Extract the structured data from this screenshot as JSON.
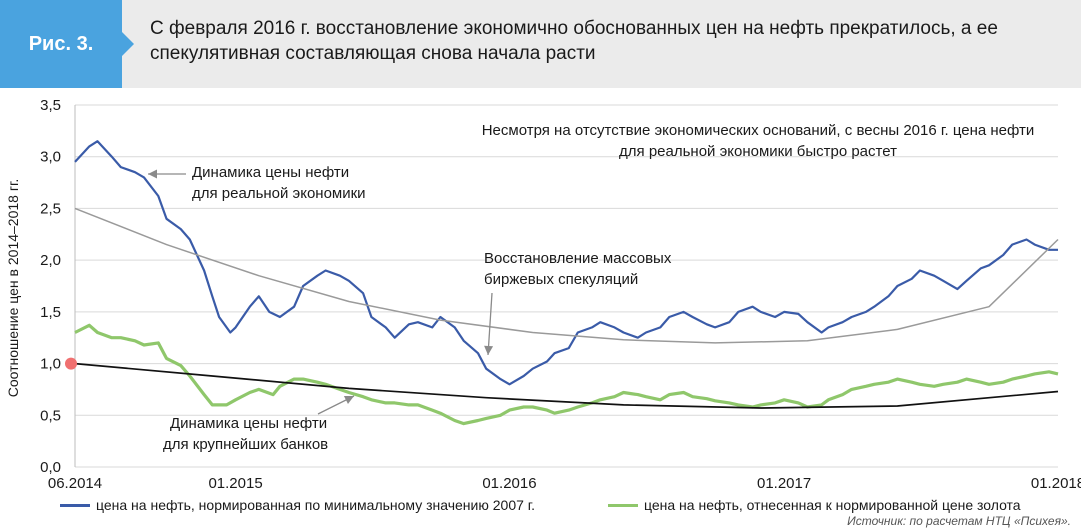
{
  "header": {
    "figure_label": "Рис. 3.",
    "title_line1": "С февраля 2016 г. восстановление экономично обоснованных цен на нефть прекратилось, а ее",
    "title_line2": "спекулятивная составляющая снова начала расти"
  },
  "colors": {
    "blue": "#3a5ba8",
    "green": "#8fc76b",
    "grey": "#9a9a9a",
    "black": "#111111",
    "marker": "#f07070",
    "accent": "#4aa3df"
  },
  "chart_data": {
    "type": "line",
    "title": "С февраля 2016 г. восстановление экономично обоснованных цен на нефть прекратилось, а ее спекулятивная составляющая снова начала расти",
    "ylabel": "Соотношение цен в 2014–2018 гг.",
    "ylim": [
      0,
      3.5
    ],
    "yticks": [
      "0,0",
      "0,5",
      "1,0",
      "1,5",
      "2,0",
      "2,5",
      "3,0",
      "3,5"
    ],
    "xlim": [
      "2014-06",
      "2018-01"
    ],
    "xticks": [
      {
        "x": "2014-06",
        "label": "06.2014"
      },
      {
        "x": "2015-01",
        "label": "01.2015"
      },
      {
        "x": "2016-01",
        "label": "01.2016"
      },
      {
        "x": "2017-01",
        "label": "01.2017"
      },
      {
        "x": "2018-01",
        "label": "01.2018"
      }
    ],
    "grid": "horizontal",
    "legend_position": "bottom",
    "series": [
      {
        "name": "цена на нефть, нормированная по минимальному значению 2007 г.",
        "style": "solid-thick",
        "points": [
          [
            "2014-06",
            2.95
          ],
          [
            "2014-06-20",
            3.1
          ],
          [
            "2014-07",
            3.15
          ],
          [
            "2014-07-20",
            3.0
          ],
          [
            "2014-08",
            2.9
          ],
          [
            "2014-08-20",
            2.85
          ],
          [
            "2014-09",
            2.8
          ],
          [
            "2014-09-20",
            2.62
          ],
          [
            "2014-10",
            2.4
          ],
          [
            "2014-10-20",
            2.3
          ],
          [
            "2014-11",
            2.2
          ],
          [
            "2014-11-20",
            1.9
          ],
          [
            "2014-12",
            1.65
          ],
          [
            "2014-12-10",
            1.45
          ],
          [
            "2014-12-25",
            1.3
          ],
          [
            "2015-01",
            1.35
          ],
          [
            "2015-01-20",
            1.55
          ],
          [
            "2015-02",
            1.65
          ],
          [
            "2015-02-15",
            1.5
          ],
          [
            "2015-03",
            1.45
          ],
          [
            "2015-03-20",
            1.55
          ],
          [
            "2015-04",
            1.75
          ],
          [
            "2015-04-20",
            1.85
          ],
          [
            "2015-05",
            1.9
          ],
          [
            "2015-05-20",
            1.85
          ],
          [
            "2015-06",
            1.8
          ],
          [
            "2015-06-20",
            1.68
          ],
          [
            "2015-07",
            1.45
          ],
          [
            "2015-07-20",
            1.35
          ],
          [
            "2015-08",
            1.25
          ],
          [
            "2015-08-20",
            1.38
          ],
          [
            "2015-09",
            1.4
          ],
          [
            "2015-09-20",
            1.35
          ],
          [
            "2015-10",
            1.45
          ],
          [
            "2015-10-20",
            1.35
          ],
          [
            "2015-11",
            1.22
          ],
          [
            "2015-11-20",
            1.1
          ],
          [
            "2015-12",
            0.95
          ],
          [
            "2015-12-20",
            0.85
          ],
          [
            "2016-01",
            0.8
          ],
          [
            "2016-01-20",
            0.88
          ],
          [
            "2016-02",
            0.95
          ],
          [
            "2016-02-20",
            1.02
          ],
          [
            "2016-03",
            1.1
          ],
          [
            "2016-03-20",
            1.15
          ],
          [
            "2016-04",
            1.3
          ],
          [
            "2016-04-20",
            1.35
          ],
          [
            "2016-05",
            1.4
          ],
          [
            "2016-05-20",
            1.35
          ],
          [
            "2016-06",
            1.3
          ],
          [
            "2016-06-20",
            1.25
          ],
          [
            "2016-07",
            1.3
          ],
          [
            "2016-07-20",
            1.35
          ],
          [
            "2016-08",
            1.45
          ],
          [
            "2016-08-20",
            1.5
          ],
          [
            "2016-09",
            1.45
          ],
          [
            "2016-09-20",
            1.38
          ],
          [
            "2016-10",
            1.35
          ],
          [
            "2016-10-20",
            1.4
          ],
          [
            "2016-11",
            1.5
          ],
          [
            "2016-11-20",
            1.55
          ],
          [
            "2016-12",
            1.5
          ],
          [
            "2016-12-20",
            1.45
          ],
          [
            "2017-01",
            1.5
          ],
          [
            "2017-01-20",
            1.48
          ],
          [
            "2017-02",
            1.4
          ],
          [
            "2017-02-20",
            1.3
          ],
          [
            "2017-03",
            1.35
          ],
          [
            "2017-03-20",
            1.4
          ],
          [
            "2017-04",
            1.45
          ],
          [
            "2017-04-20",
            1.5
          ],
          [
            "2017-05",
            1.55
          ],
          [
            "2017-05-20",
            1.65
          ],
          [
            "2017-06",
            1.75
          ],
          [
            "2017-06-20",
            1.82
          ],
          [
            "2017-07",
            1.9
          ],
          [
            "2017-07-20",
            1.85
          ],
          [
            "2017-08",
            1.8
          ],
          [
            "2017-08-20",
            1.72
          ],
          [
            "2017-09",
            1.8
          ],
          [
            "2017-09-20",
            1.92
          ],
          [
            "2017-10",
            1.95
          ],
          [
            "2017-10-20",
            2.05
          ],
          [
            "2017-11",
            2.15
          ],
          [
            "2017-11-20",
            2.2
          ],
          [
            "2017-12",
            2.15
          ],
          [
            "2017-12-20",
            2.1
          ],
          [
            "2018-01",
            2.1
          ]
        ]
      },
      {
        "name": "цена на нефть, отнесенная к нормированной цене золота",
        "style": "solid-thick",
        "points": [
          [
            "2014-06",
            1.3
          ],
          [
            "2014-06-20",
            1.37
          ],
          [
            "2014-07",
            1.3
          ],
          [
            "2014-07-20",
            1.25
          ],
          [
            "2014-08",
            1.25
          ],
          [
            "2014-08-20",
            1.22
          ],
          [
            "2014-09",
            1.18
          ],
          [
            "2014-09-20",
            1.2
          ],
          [
            "2014-10",
            1.05
          ],
          [
            "2014-10-20",
            0.98
          ],
          [
            "2014-11",
            0.88
          ],
          [
            "2014-11-20",
            0.7
          ],
          [
            "2014-12",
            0.6
          ],
          [
            "2014-12-20",
            0.6
          ],
          [
            "2015-01",
            0.65
          ],
          [
            "2015-01-20",
            0.72
          ],
          [
            "2015-02",
            0.75
          ],
          [
            "2015-02-20",
            0.7
          ],
          [
            "2015-03",
            0.78
          ],
          [
            "2015-03-20",
            0.85
          ],
          [
            "2015-04",
            0.85
          ],
          [
            "2015-04-20",
            0.82
          ],
          [
            "2015-05",
            0.8
          ],
          [
            "2015-05-20",
            0.75
          ],
          [
            "2015-06",
            0.72
          ],
          [
            "2015-06-20",
            0.68
          ],
          [
            "2015-07",
            0.65
          ],
          [
            "2015-07-20",
            0.62
          ],
          [
            "2015-08",
            0.62
          ],
          [
            "2015-08-20",
            0.6
          ],
          [
            "2015-09",
            0.6
          ],
          [
            "2015-09-20",
            0.55
          ],
          [
            "2015-10",
            0.52
          ],
          [
            "2015-10-20",
            0.45
          ],
          [
            "2015-11",
            0.42
          ],
          [
            "2015-11-20",
            0.45
          ],
          [
            "2015-12",
            0.47
          ],
          [
            "2015-12-20",
            0.5
          ],
          [
            "2016-01",
            0.55
          ],
          [
            "2016-01-20",
            0.58
          ],
          [
            "2016-02",
            0.58
          ],
          [
            "2016-02-20",
            0.55
          ],
          [
            "2016-03",
            0.52
          ],
          [
            "2016-03-20",
            0.55
          ],
          [
            "2016-04",
            0.58
          ],
          [
            "2016-04-20",
            0.62
          ],
          [
            "2016-05",
            0.65
          ],
          [
            "2016-05-20",
            0.68
          ],
          [
            "2016-06",
            0.72
          ],
          [
            "2016-06-20",
            0.7
          ],
          [
            "2016-07",
            0.68
          ],
          [
            "2016-07-20",
            0.65
          ],
          [
            "2016-08",
            0.7
          ],
          [
            "2016-08-20",
            0.72
          ],
          [
            "2016-09",
            0.68
          ],
          [
            "2016-09-20",
            0.66
          ],
          [
            "2016-10",
            0.64
          ],
          [
            "2016-10-20",
            0.62
          ],
          [
            "2016-11",
            0.6
          ],
          [
            "2016-11-20",
            0.58
          ],
          [
            "2016-12",
            0.6
          ],
          [
            "2016-12-20",
            0.62
          ],
          [
            "2017-01",
            0.65
          ],
          [
            "2017-01-20",
            0.62
          ],
          [
            "2017-02",
            0.58
          ],
          [
            "2017-02-20",
            0.6
          ],
          [
            "2017-03",
            0.65
          ],
          [
            "2017-03-20",
            0.7
          ],
          [
            "2017-04",
            0.75
          ],
          [
            "2017-04-20",
            0.78
          ],
          [
            "2017-05",
            0.8
          ],
          [
            "2017-05-20",
            0.82
          ],
          [
            "2017-06",
            0.85
          ],
          [
            "2017-06-20",
            0.82
          ],
          [
            "2017-07",
            0.8
          ],
          [
            "2017-07-20",
            0.78
          ],
          [
            "2017-08",
            0.8
          ],
          [
            "2017-08-20",
            0.82
          ],
          [
            "2017-09",
            0.85
          ],
          [
            "2017-09-20",
            0.82
          ],
          [
            "2017-10",
            0.8
          ],
          [
            "2017-10-20",
            0.82
          ],
          [
            "2017-11",
            0.85
          ],
          [
            "2017-11-20",
            0.88
          ],
          [
            "2017-12",
            0.9
          ],
          [
            "2017-12-20",
            0.92
          ],
          [
            "2018-01",
            0.9
          ]
        ]
      },
      {
        "style": "trend-grey",
        "points": [
          [
            "2014-06",
            2.5
          ],
          [
            "2014-10",
            2.15
          ],
          [
            "2015-02",
            1.85
          ],
          [
            "2015-06",
            1.6
          ],
          [
            "2015-10",
            1.42
          ],
          [
            "2016-02",
            1.3
          ],
          [
            "2016-06",
            1.23
          ],
          [
            "2016-10",
            1.2
          ],
          [
            "2017-02",
            1.22
          ],
          [
            "2017-06",
            1.33
          ],
          [
            "2017-10",
            1.55
          ],
          [
            "2018-01",
            2.2
          ]
        ]
      },
      {
        "style": "trend-black",
        "points": [
          [
            "2014-06",
            1.0
          ],
          [
            "2014-12",
            0.88
          ],
          [
            "2015-06",
            0.76
          ],
          [
            "2015-12",
            0.67
          ],
          [
            "2016-06",
            0.6
          ],
          [
            "2016-12",
            0.57
          ],
          [
            "2017-06",
            0.59
          ],
          [
            "2018-01",
            0.73
          ]
        ]
      }
    ],
    "annotations": [
      {
        "id": "real",
        "line1": "Динамика цены нефти",
        "line2": "для реальной экономики"
      },
      {
        "id": "banks",
        "line1": "Динамика цены нефти",
        "line2": "для крупнейших банков"
      },
      {
        "id": "spec",
        "line1": "Восстановление массовых",
        "line2": "биржевых спекуляций"
      },
      {
        "id": "note",
        "line1": "Несмотря на отсутствие экономических оснований, с весны 2016 г. цена нефти",
        "line2": "для реальной экономики быстро растет"
      }
    ],
    "marker_point": [
      "2014-06",
      1.0
    ]
  },
  "source": "Источник: по расчетам НТЦ «Психея»."
}
